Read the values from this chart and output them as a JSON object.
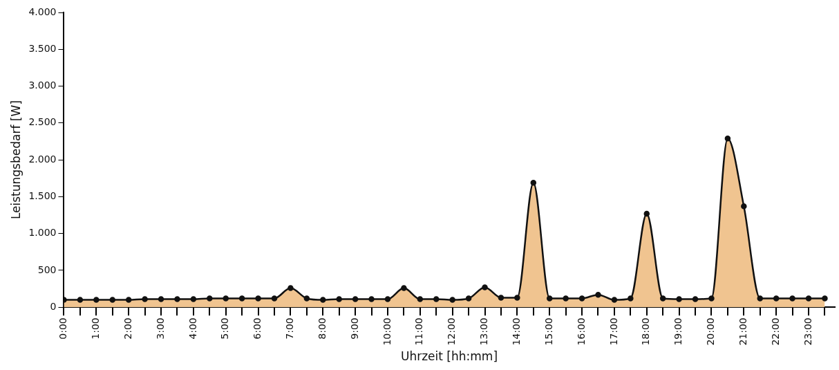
{
  "chart_data": {
    "type": "area",
    "xlabel": "Uhrzeit [hh:mm]",
    "ylabel": "Leistungsbedarf [W]",
    "x": [
      0,
      0.5,
      1,
      1.5,
      2,
      2.5,
      3,
      3.5,
      4,
      4.5,
      5,
      5.5,
      6,
      6.5,
      7,
      7.5,
      8,
      8.5,
      9,
      9.5,
      10,
      10.5,
      11,
      11.5,
      12,
      12.5,
      13,
      13.5,
      14,
      14.5,
      15,
      15.5,
      16,
      16.5,
      17,
      17.5,
      18,
      18.5,
      19,
      19.5,
      20,
      20.5,
      21,
      21.5,
      22,
      22.5,
      23,
      23.5
    ],
    "series": [
      {
        "color": "#f0c490",
        "values": [
          100,
          100,
          100,
          100,
          100,
          110,
          110,
          110,
          110,
          120,
          120,
          120,
          120,
          120,
          260,
          120,
          100,
          110,
          110,
          110,
          110,
          260,
          110,
          110,
          100,
          120,
          270,
          130,
          130,
          1690,
          120,
          120,
          120,
          170,
          100,
          120,
          1270,
          120,
          110,
          110,
          120,
          2290,
          1370,
          120,
          120,
          120,
          120,
          120
        ]
      }
    ],
    "xlim": [
      0,
      23.8
    ],
    "xticks": [
      {
        "value": 0,
        "label": "0:00"
      },
      {
        "value": 0.5,
        "label": null
      },
      {
        "value": 1,
        "label": "1:00"
      },
      {
        "value": 1.5,
        "label": null
      },
      {
        "value": 2,
        "label": "2:00"
      },
      {
        "value": 2.5,
        "label": null
      },
      {
        "value": 3,
        "label": "3:00"
      },
      {
        "value": 3.5,
        "label": null
      },
      {
        "value": 4,
        "label": "4:00"
      },
      {
        "value": 4.5,
        "label": null
      },
      {
        "value": 5,
        "label": "5:00"
      },
      {
        "value": 5.5,
        "label": null
      },
      {
        "value": 6,
        "label": "6:00"
      },
      {
        "value": 6.5,
        "label": null
      },
      {
        "value": 7,
        "label": "7:00"
      },
      {
        "value": 7.5,
        "label": null
      },
      {
        "value": 8,
        "label": "8:00"
      },
      {
        "value": 8.5,
        "label": null
      },
      {
        "value": 9,
        "label": "9:00"
      },
      {
        "value": 9.5,
        "label": null
      },
      {
        "value": 10,
        "label": "10:00"
      },
      {
        "value": 10.5,
        "label": null
      },
      {
        "value": 11,
        "label": "11:00"
      },
      {
        "value": 11.5,
        "label": null
      },
      {
        "value": 12,
        "label": "12:00"
      },
      {
        "value": 12.5,
        "label": null
      },
      {
        "value": 13,
        "label": "13:00"
      },
      {
        "value": 13.5,
        "label": null
      },
      {
        "value": 14,
        "label": "14:00"
      },
      {
        "value": 14.5,
        "label": null
      },
      {
        "value": 15,
        "label": "15:00"
      },
      {
        "value": 15.5,
        "label": null
      },
      {
        "value": 16,
        "label": "16:00"
      },
      {
        "value": 16.5,
        "label": null
      },
      {
        "value": 17,
        "label": "17:00"
      },
      {
        "value": 17.5,
        "label": null
      },
      {
        "value": 18,
        "label": "18:00"
      },
      {
        "value": 18.5,
        "label": null
      },
      {
        "value": 19,
        "label": "19:00"
      },
      {
        "value": 19.5,
        "label": null
      },
      {
        "value": 20,
        "label": "20:00"
      },
      {
        "value": 20.5,
        "label": null
      },
      {
        "value": 21,
        "label": "21:00"
      },
      {
        "value": 21.5,
        "label": null
      },
      {
        "value": 22,
        "label": "22:00"
      },
      {
        "value": 22.5,
        "label": null
      },
      {
        "value": 23,
        "label": "23:00"
      },
      {
        "value": 23.5,
        "label": null
      }
    ],
    "ylim": [
      0,
      4000
    ],
    "yticks": [
      {
        "value": 0,
        "label": "0"
      },
      {
        "value": 500,
        "label": "500"
      },
      {
        "value": 1000,
        "label": "1.000"
      },
      {
        "value": 1500,
        "label": "1.500"
      },
      {
        "value": 2000,
        "label": "2.000"
      },
      {
        "value": 2500,
        "label": "2.500"
      },
      {
        "value": 3000,
        "label": "3.000"
      },
      {
        "value": 3500,
        "label": "3.500"
      },
      {
        "value": 4000,
        "label": "4.000"
      }
    ],
    "marker": "circle",
    "line_style": "solid"
  }
}
